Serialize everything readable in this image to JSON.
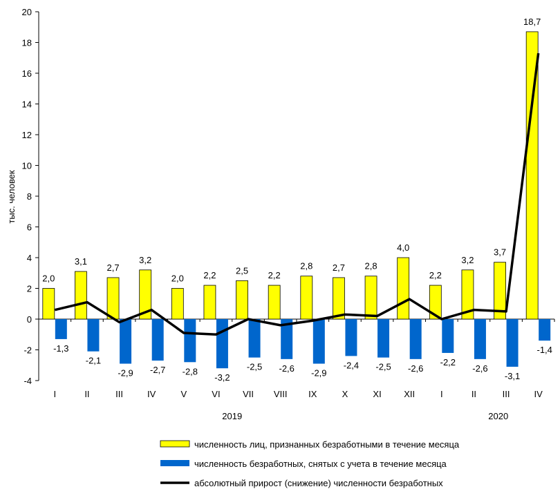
{
  "chart_data": {
    "type": "bar",
    "ylabel": "тыс. человек",
    "ylim": [
      -4,
      20
    ],
    "yticks": [
      -4,
      -2,
      0,
      2,
      4,
      6,
      8,
      10,
      12,
      14,
      16,
      18,
      20
    ],
    "categories": [
      "I",
      "II",
      "III",
      "IV",
      "V",
      "VI",
      "VII",
      "VIII",
      "IX",
      "X",
      "XI",
      "XII",
      "I",
      "II",
      "III",
      "IV"
    ],
    "year_labels": [
      {
        "label": "2019",
        "start": 0,
        "end": 11
      },
      {
        "label": "2020",
        "start": 12,
        "end": 15
      }
    ],
    "series": [
      {
        "name": "численность лиц, признанных безработными в течение месяца",
        "kind": "bar",
        "color": "#ffff00",
        "values": [
          2.0,
          3.1,
          2.7,
          3.2,
          2.0,
          2.2,
          2.5,
          2.2,
          2.8,
          2.7,
          2.8,
          4.0,
          2.2,
          3.2,
          3.7,
          18.7
        ],
        "labels": [
          "2,0",
          "3,1",
          "2,7",
          "3,2",
          "2,0",
          "2,2",
          "2,5",
          "2,2",
          "2,8",
          "2,7",
          "2,8",
          "4,0",
          "2,2",
          "3,2",
          "3,7",
          "18,7"
        ]
      },
      {
        "name": "численность безработных, снятых с учета в течение месяца",
        "kind": "bar",
        "color": "#0066cc",
        "values": [
          -1.3,
          -2.1,
          -2.9,
          -2.7,
          -2.8,
          -3.2,
          -2.5,
          -2.6,
          -2.9,
          -2.4,
          -2.5,
          -2.6,
          -2.2,
          -2.6,
          -3.1,
          -1.4
        ],
        "labels": [
          "-1,3",
          "-2,1",
          "-2,9",
          "-2,7",
          "-2,8",
          "-3,2",
          "-2,5",
          "-2,6",
          "-2,9",
          "-2,4",
          "-2,5",
          "-2,6",
          "-2,2",
          "-2,6",
          "-3,1",
          "-1,4"
        ]
      },
      {
        "name": "абсолютный прирост (снижение) численности безработных",
        "kind": "line",
        "color": "#000000",
        "values": [
          0.6,
          1.1,
          -0.2,
          0.6,
          -0.9,
          -1.0,
          0.0,
          -0.4,
          -0.1,
          0.3,
          0.2,
          1.3,
          0.0,
          0.6,
          0.5,
          17.3
        ]
      }
    ],
    "legend_placement": "bottom",
    "grid": false
  }
}
